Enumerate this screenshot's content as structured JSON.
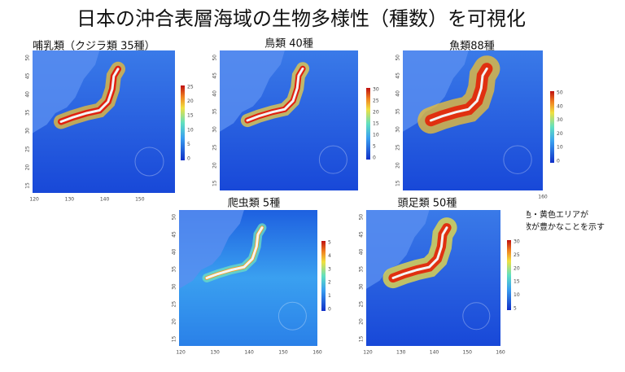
{
  "title": "日本の沖合表層海域の生物多様性（種数）を可視化",
  "axes": {
    "lon_ticks": [
      120,
      130,
      140,
      150,
      160
    ],
    "lat_ticks": [
      15,
      20,
      25,
      30,
      35,
      40,
      45,
      50
    ]
  },
  "panels": [
    {
      "label": "哺乳類（クジラ類 35種）",
      "colorbar_ticks": [
        0,
        5,
        10,
        15,
        20,
        25
      ]
    },
    {
      "label": "鳥類 40種",
      "colorbar_ticks": [
        0,
        5,
        10,
        15,
        20,
        25,
        30
      ]
    },
    {
      "label": "魚類88種",
      "colorbar_ticks": [
        0,
        10,
        20,
        30,
        40,
        50
      ]
    },
    {
      "label": "爬虫類 5種",
      "colorbar_ticks": [
        0,
        1,
        2,
        3,
        4,
        5
      ]
    },
    {
      "label": "頭足類 50種",
      "colorbar_ticks": [
        5,
        10,
        15,
        20,
        25,
        30
      ]
    }
  ],
  "note": [
    "赤色・黄色エリアが",
    "種数が豊かなことを示す"
  ]
}
